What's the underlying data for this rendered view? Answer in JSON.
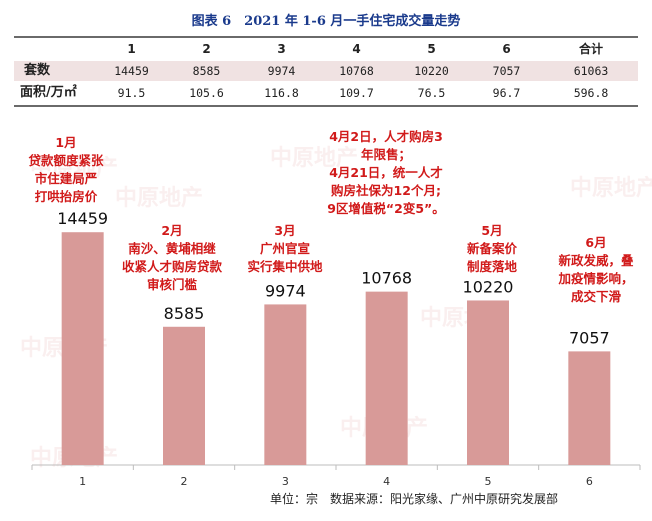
{
  "title": "图表 6　2021 年 1-6 月一手住宅成交量走势",
  "table": {
    "headers": [
      "",
      "1",
      "2",
      "3",
      "4",
      "5",
      "6",
      "合计"
    ],
    "rows": [
      {
        "label": "套数",
        "values": [
          "14459",
          "8585",
          "9974",
          "10768",
          "10220",
          "7057",
          "61063"
        ]
      },
      {
        "label": "面积/万㎡",
        "values": [
          "91.5",
          "105.6",
          "116.8",
          "109.7",
          "76.5",
          "96.7",
          "596.8"
        ]
      }
    ]
  },
  "chart_data": {
    "type": "bar",
    "categories": [
      "1",
      "2",
      "3",
      "4",
      "5",
      "6"
    ],
    "values": [
      14459,
      8585,
      9974,
      10768,
      10220,
      7057
    ],
    "data_labels": [
      "14459",
      "8585",
      "9974",
      "10768",
      "10220",
      "7057"
    ],
    "ylim": [
      0,
      20000
    ],
    "bar_color": "#d89a98",
    "grid": false,
    "legend": "none"
  },
  "annotations": [
    {
      "lines": [
        "1月",
        "贷款额度紧张",
        "市住建局严",
        "打哄抬房价"
      ]
    },
    {
      "lines": [
        "2月",
        "南沙、黄埔相继",
        "收紧人才购房贷款",
        "审核门槛"
      ]
    },
    {
      "lines": [
        "3月",
        "广州官宣",
        "实行集中供地"
      ]
    },
    {
      "lines": [
        "4月2日，人才购房3",
        "年限售；",
        "4月21日，统一人才",
        "购房社保为12个月;",
        "9区增值税“2变5”。"
      ]
    },
    {
      "lines": [
        "5月",
        "新备案价",
        "制度落地"
      ]
    },
    {
      "lines": [
        "6月",
        "新政发威，叠",
        "加疫情影响，",
        "成交下滑"
      ]
    }
  ],
  "watermark": "中原地产",
  "footer": "单位：宗　数据来源：阳光家缘、广州中原研究发展部",
  "colors": {
    "annotation": "#d11a1a",
    "title": "#1a3a8c",
    "table_shade": "#f0e2e2"
  }
}
